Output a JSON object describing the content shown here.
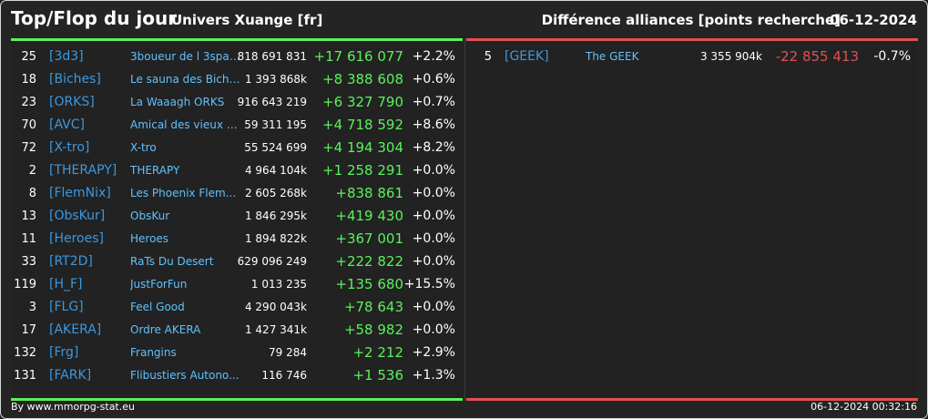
{
  "header": {
    "title": "Top/Flop du jour",
    "universe": "Univers Xuange [fr]",
    "category": "Différence alliances [points recherche]",
    "date": "06-12-2024"
  },
  "colors": {
    "positive": "#5af25a",
    "negative": "#e05050",
    "tag": "#3b98e0",
    "name": "#5fc2ff"
  },
  "top": [
    {
      "rank": "25",
      "tag": "[3d3]",
      "name": "3boueur de l 3spac...",
      "points": "818 691 831",
      "diff": "+17 616 077",
      "pct": "+2.2%"
    },
    {
      "rank": "18",
      "tag": "[Biches]",
      "name": "Le sauna des Biche...",
      "points": "1 393 868k",
      "diff": "+8 388 608",
      "pct": "+0.6%"
    },
    {
      "rank": "23",
      "tag": "[ORKS]",
      "name": "La Waaagh ORKS",
      "points": "916 643 219",
      "diff": "+6 327 790",
      "pct": "+0.7%"
    },
    {
      "rank": "70",
      "tag": "[AVC]",
      "name": "Amical des vieux co...",
      "points": "59 311 195",
      "diff": "+4 718 592",
      "pct": "+8.6%"
    },
    {
      "rank": "72",
      "tag": "[X-tro]",
      "name": "X-tro",
      "points": "55 524 699",
      "diff": "+4 194 304",
      "pct": "+8.2%"
    },
    {
      "rank": "2",
      "tag": "[THERAPY]",
      "name": "THERAPY",
      "points": "4 964 104k",
      "diff": "+1 258 291",
      "pct": "+0.0%"
    },
    {
      "rank": "8",
      "tag": "[FlemNix]",
      "name": "Les Phoenix Flem...",
      "points": "2 605 268k",
      "diff": "+838 861",
      "pct": "+0.0%"
    },
    {
      "rank": "13",
      "tag": "[ObsKur]",
      "name": "ObsKur",
      "points": "1 846 295k",
      "diff": "+419 430",
      "pct": "+0.0%"
    },
    {
      "rank": "11",
      "tag": "[Heroes]",
      "name": "Heroes",
      "points": "1 894 822k",
      "diff": "+367 001",
      "pct": "+0.0%"
    },
    {
      "rank": "33",
      "tag": "[RT2D]",
      "name": "RaTs Du Desert",
      "points": "629 096 249",
      "diff": "+222 822",
      "pct": "+0.0%"
    },
    {
      "rank": "119",
      "tag": "[H_F]",
      "name": "JustForFun",
      "points": "1 013 235",
      "diff": "+135 680",
      "pct": "+15.5%"
    },
    {
      "rank": "3",
      "tag": "[FLG]",
      "name": "Feel Good",
      "points": "4 290 043k",
      "diff": "+78 643",
      "pct": "+0.0%"
    },
    {
      "rank": "17",
      "tag": "[AKERA]",
      "name": "Ordre AKERA",
      "points": "1 427 341k",
      "diff": "+58 982",
      "pct": "+0.0%"
    },
    {
      "rank": "132",
      "tag": "[Frg]",
      "name": "Frangins",
      "points": "79 284",
      "diff": "+2 212",
      "pct": "+2.9%"
    },
    {
      "rank": "131",
      "tag": "[FARK]",
      "name": "Flibustiers Autono...",
      "points": "116 746",
      "diff": "+1 536",
      "pct": "+1.3%"
    }
  ],
  "flop": [
    {
      "rank": "5",
      "tag": "[GEEK]",
      "name": "The GEEK",
      "points": "3 355 904k",
      "diff": "-22 855 413",
      "pct": "-0.7%"
    }
  ],
  "footer": {
    "source": "By www.mmorpg-stat.eu",
    "timestamp": "06-12-2024 00:32:16"
  }
}
